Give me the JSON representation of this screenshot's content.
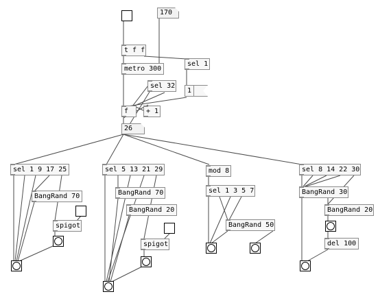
{
  "patch": {
    "objects": {
      "number_170": "170",
      "tff": "t f f",
      "metro": "metro 300",
      "sel_1_top": "sel 1",
      "sel_32": "sel 32",
      "msg_1": "1",
      "f": "f",
      "plus1": "+ 1",
      "number_26": "26",
      "sel_1_9_17_25": "sel 1 9 17 25",
      "bangrand_70_a": "BangRand 70",
      "spigot_a": "spigot",
      "sel_5_13_21_29": "sel 5 13 21 29",
      "bangrand_70_b": "BangRand 70",
      "bangrand_20_b": "BangRand 20",
      "spigot_b": "spigot",
      "mod_8": "mod 8",
      "sel_1_3_5_7": "sel 1 3 5 7",
      "bangrand_50": "BangRand 50",
      "sel_8_14_22_30": "sel 8 14 22 30",
      "bangrand_30": "BangRand 30",
      "bangrand_20_d": "BangRand 20",
      "del_100": "del 100"
    },
    "colors": {
      "box_border": "#8a8a8a",
      "box_fill": "#f7f7f7",
      "wire": "#333333",
      "background": "#ffffff"
    }
  }
}
